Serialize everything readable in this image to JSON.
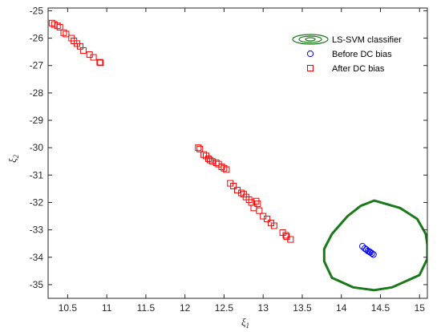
{
  "chart_data": {
    "type": "scatter",
    "title": "",
    "xlabel": "ξ",
    "xlabel_sub": "1",
    "ylabel": "ξ",
    "ylabel_sub": "2",
    "xlim": [
      10.25,
      15.1
    ],
    "ylim": [
      -35.5,
      -24.9
    ],
    "xticks": [
      "10.5",
      "11",
      "11.5",
      "12",
      "12.5",
      "13",
      "13.5",
      "14",
      "14.5",
      "15"
    ],
    "yticks": [
      "-25",
      "-26",
      "-27",
      "-28",
      "-29",
      "-30",
      "-31",
      "-32",
      "-33",
      "-34",
      "-35"
    ],
    "grid": false,
    "legend_position": "top-right",
    "legend": [
      {
        "label": "LS-SVM classifier",
        "marker": "contour",
        "color": "#1a7a1a"
      },
      {
        "label": "Before DC bias",
        "marker": "circle",
        "color": "#0000ff"
      },
      {
        "label": "After DC bias",
        "marker": "square",
        "color": "#ff0000"
      }
    ],
    "series": [
      {
        "name": "Before DC bias",
        "color": "#0000ff",
        "marker": "circle",
        "points": [
          [
            14.27,
            -33.6
          ],
          [
            14.3,
            -33.68
          ],
          [
            14.32,
            -33.72
          ],
          [
            14.34,
            -33.77
          ],
          [
            14.36,
            -33.8
          ],
          [
            14.37,
            -33.82
          ],
          [
            14.39,
            -33.86
          ],
          [
            14.41,
            -33.9
          ]
        ]
      },
      {
        "name": "After DC bias",
        "color": "#ff0000",
        "marker": "square",
        "points": [
          [
            10.3,
            -25.45
          ],
          [
            10.33,
            -25.5
          ],
          [
            10.37,
            -25.55
          ],
          [
            10.4,
            -25.6
          ],
          [
            10.45,
            -25.8
          ],
          [
            10.48,
            -25.85
          ],
          [
            10.55,
            -26.0
          ],
          [
            10.58,
            -26.1
          ],
          [
            10.62,
            -26.2
          ],
          [
            10.66,
            -26.3
          ],
          [
            10.7,
            -26.45
          ],
          [
            10.78,
            -26.6
          ],
          [
            10.83,
            -26.7
          ],
          [
            10.91,
            -26.88
          ],
          [
            10.92,
            -26.9
          ],
          [
            12.17,
            -30.0
          ],
          [
            12.19,
            -30.05
          ],
          [
            12.24,
            -30.25
          ],
          [
            12.27,
            -30.3
          ],
          [
            12.3,
            -30.4
          ],
          [
            12.32,
            -30.45
          ],
          [
            12.35,
            -30.5
          ],
          [
            12.4,
            -30.55
          ],
          [
            12.43,
            -30.6
          ],
          [
            12.47,
            -30.7
          ],
          [
            12.5,
            -30.75
          ],
          [
            12.53,
            -30.8
          ],
          [
            12.58,
            -31.3
          ],
          [
            12.62,
            -31.4
          ],
          [
            12.67,
            -31.55
          ],
          [
            12.72,
            -31.65
          ],
          [
            12.75,
            -31.7
          ],
          [
            12.78,
            -31.8
          ],
          [
            12.82,
            -31.9
          ],
          [
            12.85,
            -32.0
          ],
          [
            12.88,
            -32.2
          ],
          [
            12.91,
            -31.95
          ],
          [
            12.93,
            -32.05
          ],
          [
            12.95,
            -32.3
          ],
          [
            13.0,
            -32.5
          ],
          [
            13.05,
            -32.6
          ],
          [
            13.1,
            -32.75
          ],
          [
            13.14,
            -32.85
          ],
          [
            13.25,
            -33.1
          ],
          [
            13.29,
            -33.2
          ],
          [
            13.3,
            -33.25
          ],
          [
            13.35,
            -33.35
          ]
        ]
      }
    ],
    "contour": {
      "name": "LS-SVM classifier",
      "color": "#1a7a1a",
      "boundary": [
        [
          14.42,
          -31.93
        ],
        [
          14.75,
          -32.2
        ],
        [
          14.97,
          -32.6
        ],
        [
          15.08,
          -33.15
        ],
        [
          15.1,
          -33.55
        ],
        [
          15.1,
          -34.05
        ],
        [
          15.0,
          -34.65
        ],
        [
          14.65,
          -35.1
        ],
        [
          14.42,
          -35.2
        ],
        [
          14.15,
          -35.1
        ],
        [
          13.88,
          -34.75
        ],
        [
          13.78,
          -34.15
        ],
        [
          13.78,
          -33.7
        ],
        [
          13.88,
          -33.15
        ],
        [
          14.08,
          -32.5
        ],
        [
          14.25,
          -32.12
        ]
      ]
    }
  }
}
